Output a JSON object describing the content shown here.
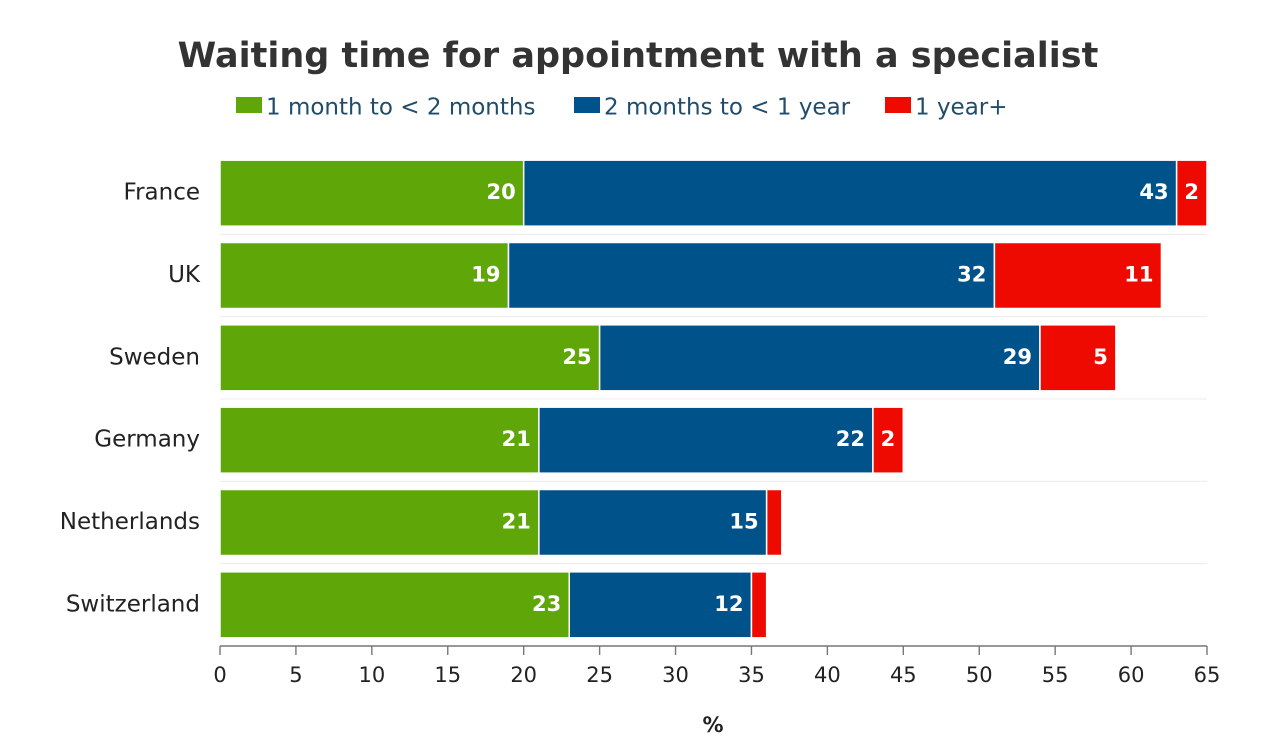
{
  "chart_data": {
    "type": "bar",
    "orientation": "horizontal",
    "stacked": true,
    "title": "Waiting time for appointment with a specialist",
    "xlabel": "%",
    "ylabel": "",
    "xlim": [
      0,
      65
    ],
    "xticks": [
      0,
      5,
      10,
      15,
      20,
      25,
      30,
      35,
      40,
      45,
      50,
      55,
      60,
      65
    ],
    "grid": true,
    "legend_position": "top",
    "categories": [
      "France",
      "UK",
      "Sweden",
      "Germany",
      "Netherlands",
      "Switzerland"
    ],
    "series": [
      {
        "name": "1 month to < 2 months",
        "color": "#5fa609",
        "values": [
          20,
          19,
          25,
          21,
          21,
          23
        ],
        "labels": [
          "20",
          "19",
          "25",
          "21",
          "21",
          "23"
        ]
      },
      {
        "name": "2 months to < 1 year",
        "color": "#00528a",
        "values": [
          43,
          32,
          29,
          22,
          15,
          12
        ],
        "labels": [
          "43",
          "32",
          "29",
          "22",
          "15",
          "12"
        ]
      },
      {
        "name": "1 year+",
        "color": "#ef0a00",
        "values": [
          2,
          11,
          5,
          2,
          1,
          1
        ],
        "labels": [
          "2",
          "11",
          "5",
          "2",
          "",
          ""
        ]
      }
    ]
  }
}
